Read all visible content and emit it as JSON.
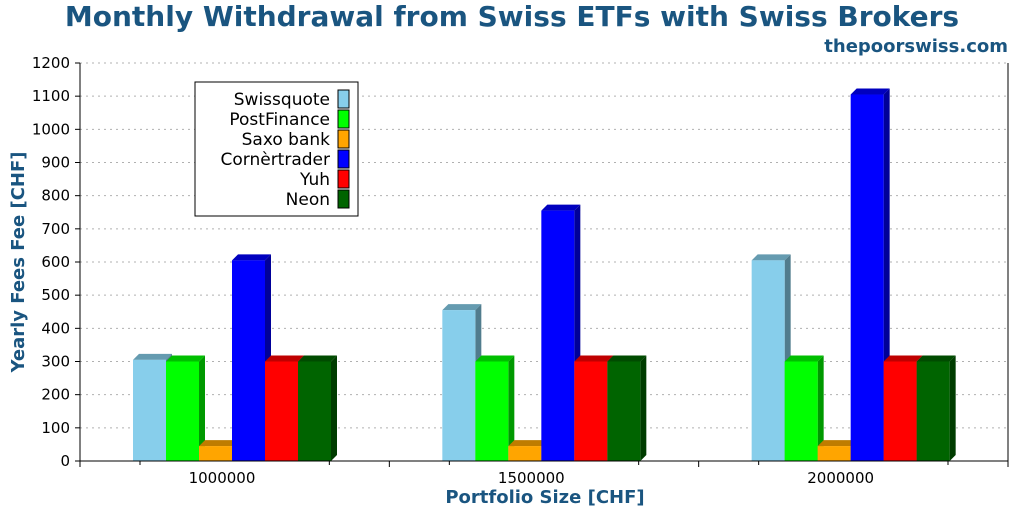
{
  "chart_data": {
    "type": "bar",
    "title": "Monthly Withdrawal from Swiss ETFs with Swiss Brokers",
    "subtitle": "thepoorswiss.com",
    "xlabel": "Portfolio Size [CHF]",
    "ylabel": "Yearly Fees Fee [CHF]",
    "categories": [
      "1000000",
      "1500000",
      "2000000"
    ],
    "ylim": [
      0,
      1200
    ],
    "yticks": [
      0,
      100,
      200,
      300,
      400,
      500,
      600,
      700,
      800,
      900,
      1000,
      1100,
      1200
    ],
    "grid": true,
    "legend_position": "top-left",
    "series": [
      {
        "name": "Swissquote",
        "color": "#87ceeb",
        "values": [
          305,
          455,
          605
        ]
      },
      {
        "name": "PostFinance",
        "color": "#00ff00",
        "values": [
          300,
          300,
          300
        ]
      },
      {
        "name": "Saxo bank",
        "color": "#ffa500",
        "values": [
          45,
          45,
          45
        ]
      },
      {
        "name": "Cornèrtrader",
        "color": "#0000ff",
        "values": [
          605,
          755,
          1105
        ]
      },
      {
        "name": "Yuh",
        "color": "#ff0000",
        "values": [
          300,
          300,
          300
        ]
      },
      {
        "name": "Neon",
        "color": "#006400",
        "values": [
          300,
          300,
          300
        ]
      }
    ]
  }
}
